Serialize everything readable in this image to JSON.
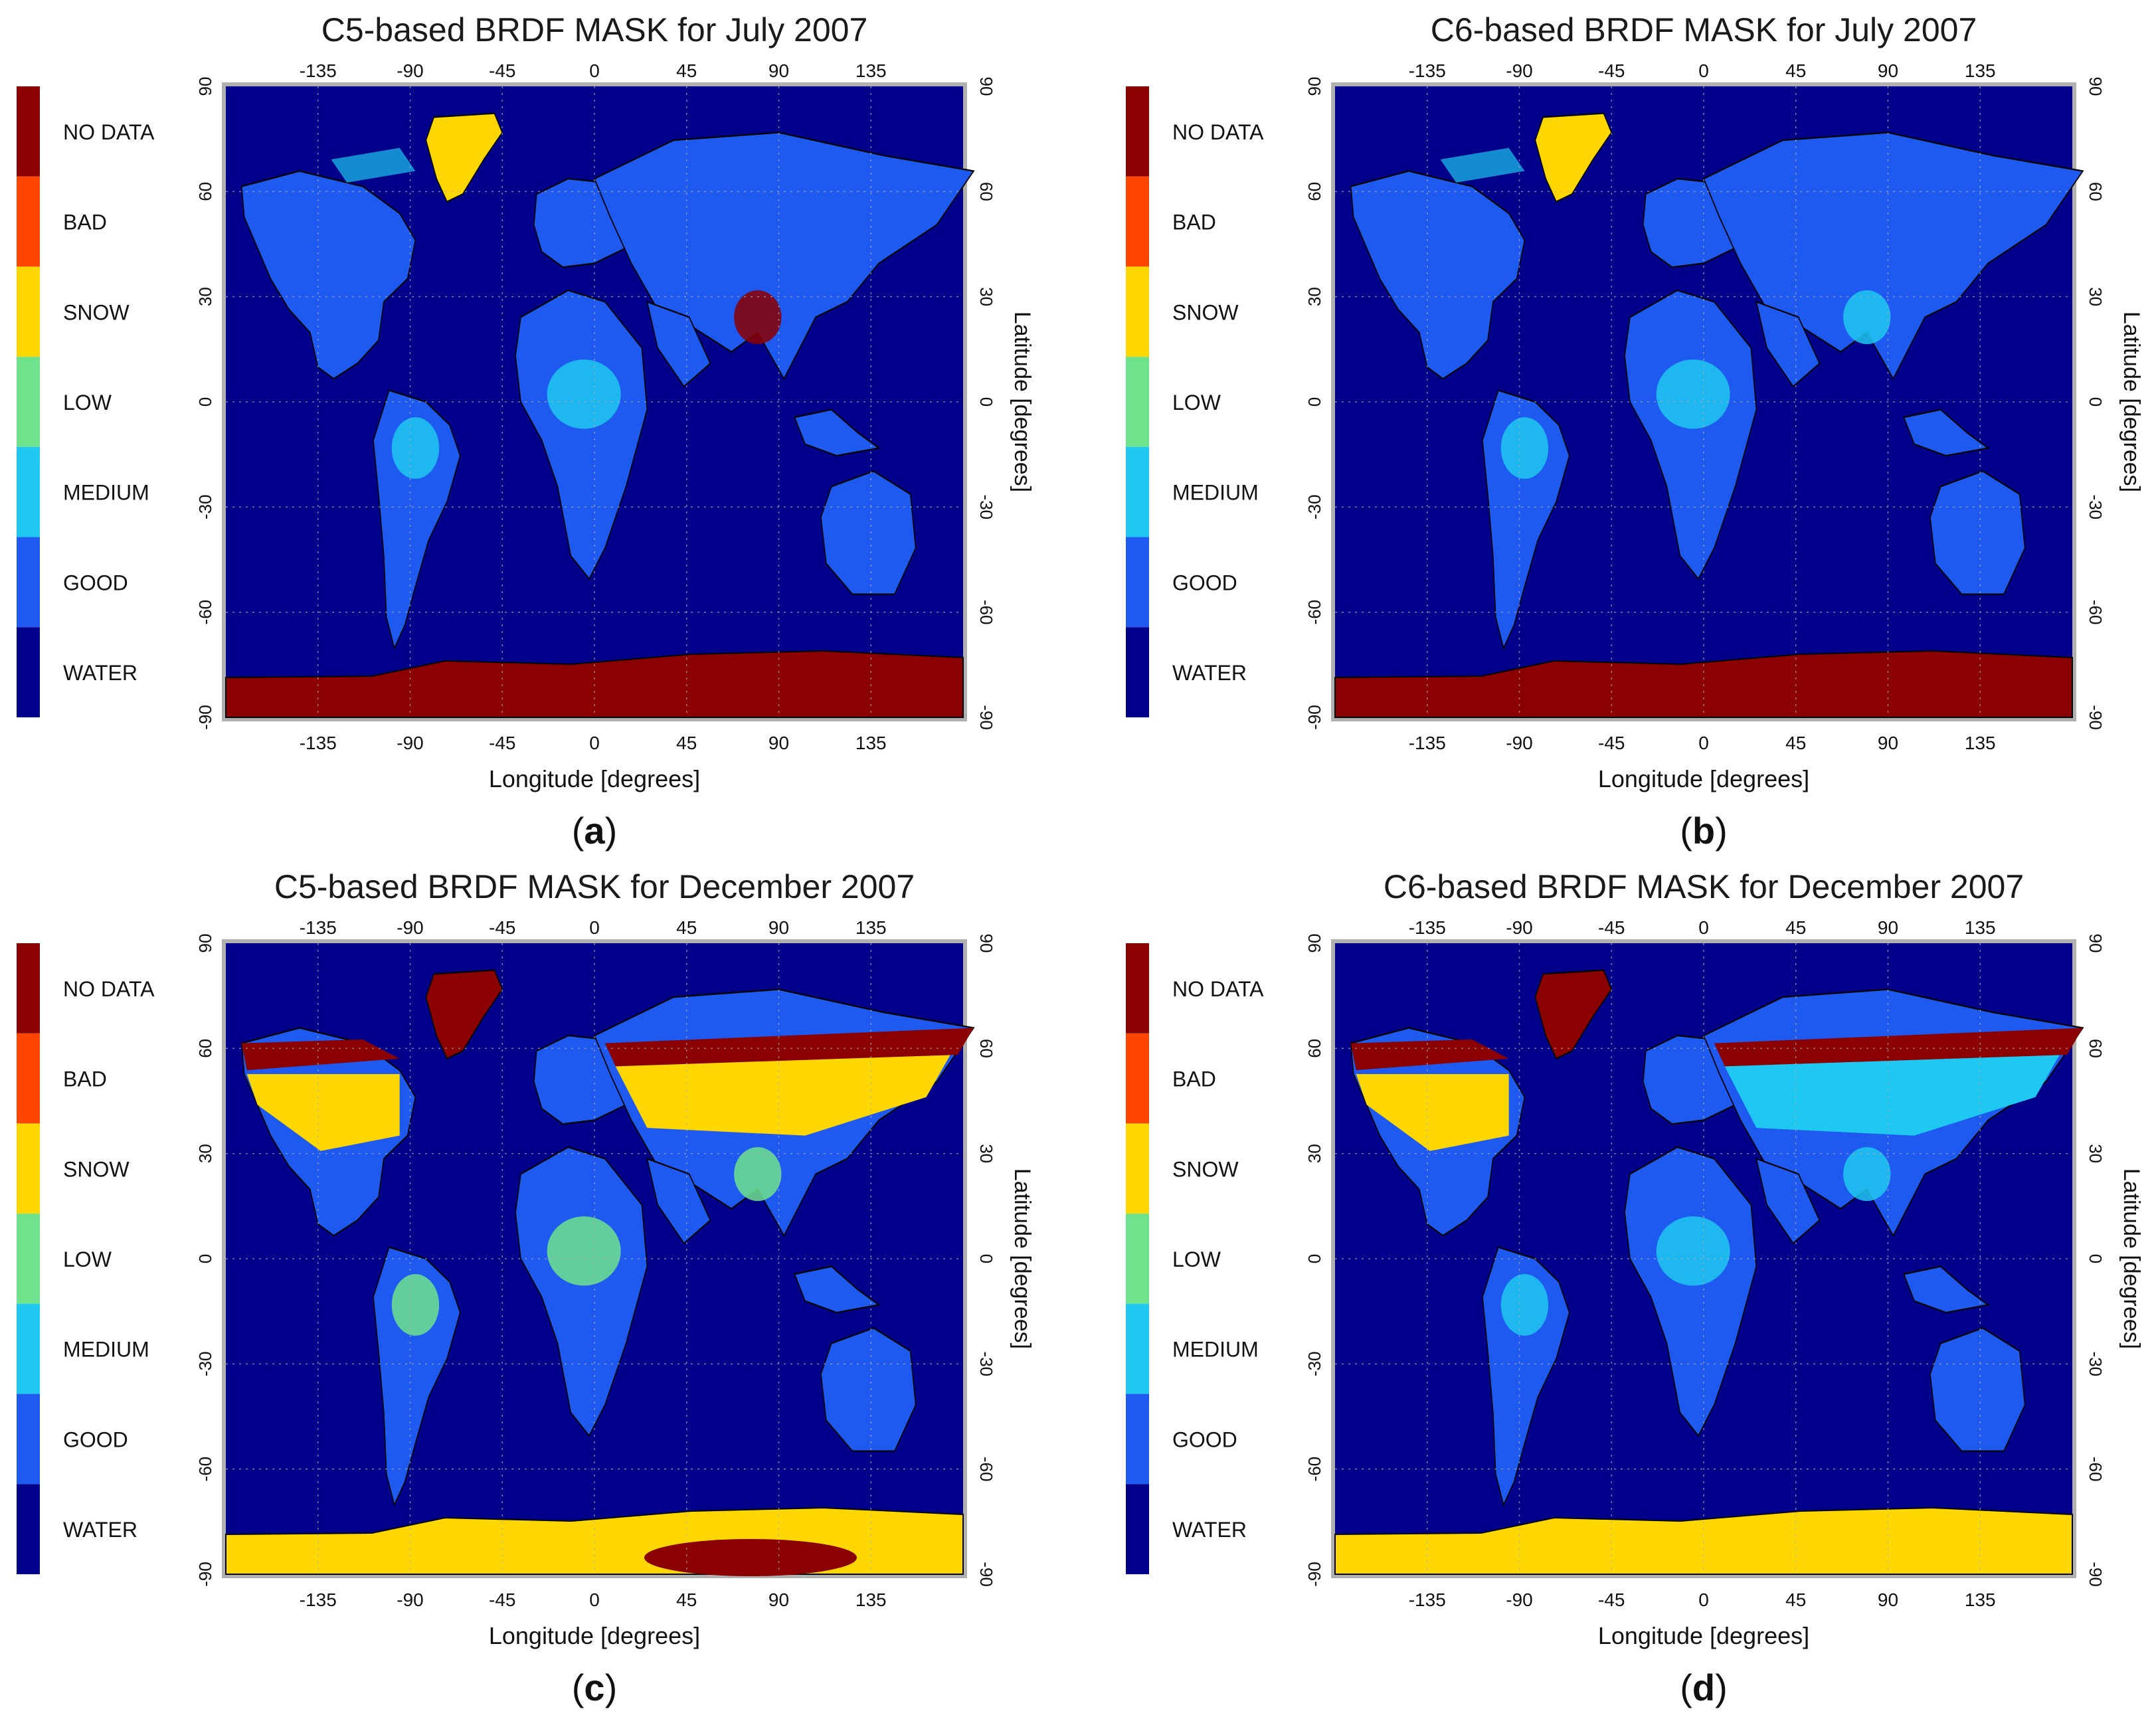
{
  "colors": {
    "nodata": "#8b0000",
    "bad": "#ff4500",
    "snow": "#ffd700",
    "low": "#6ee38c",
    "medium": "#1ec8f0",
    "good": "#1e5af0",
    "water": "#00008b",
    "coast": "#000000",
    "frame": "#b0b0b0"
  },
  "legend": [
    "NO DATA",
    "BAD",
    "SNOW",
    "LOW",
    "MEDIUM",
    "GOOD",
    "WATER"
  ],
  "axes": {
    "xlabel": "Longitude [degrees]",
    "ylabel": "Latitude [degrees]",
    "xticks": [
      "-135",
      "-90",
      "-45",
      "0",
      "45",
      "90",
      "135"
    ],
    "yticks": [
      "90",
      "60",
      "30",
      "0",
      "-30",
      "-60",
      "-90"
    ]
  },
  "panels": [
    {
      "id": "a",
      "title": "C5-based BRDF MASK for July 2007",
      "label": "(a)",
      "south_class": "nodata",
      "north_class": "snow-greenland",
      "tropic_class": "medium"
    },
    {
      "id": "b",
      "title": "C6-based BRDF MASK for July 2007",
      "label": "(b)",
      "south_class": "nodata",
      "north_class": "snow-greenland",
      "tropic_class": "medium"
    },
    {
      "id": "c",
      "title": "C5-based BRDF MASK for December 2007",
      "label": "(c)",
      "south_class": "snow",
      "north_class": "nodata-snowbelt",
      "tropic_class": "low"
    },
    {
      "id": "d",
      "title": "C6-based BRDF MASK for December 2007",
      "label": "(d)",
      "south_class": "snow",
      "north_class": "nodata-snowbelt",
      "tropic_class": "medium"
    }
  ],
  "label_a": "a",
  "label_b": "b",
  "label_c": "c",
  "label_d": "d"
}
